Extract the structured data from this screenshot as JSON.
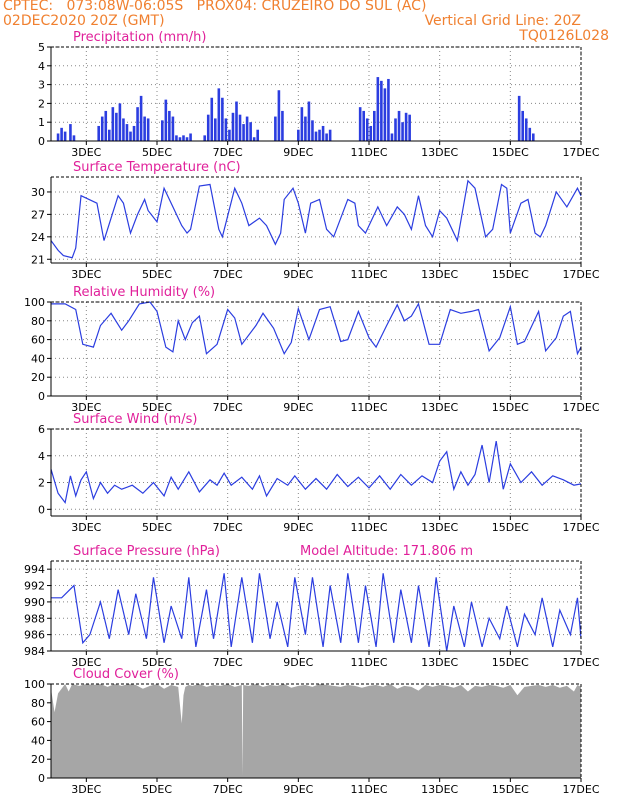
{
  "header": {
    "line1_left": "CPTEC:   073:08W-06:05S   PROX04: CRUZEIRO DO SUL (AC)",
    "line2_left": "02DEC2020 20Z (GMT)",
    "line2_right": "Vertical Grid Line: 20Z",
    "line3_right": "TQ0126L028"
  },
  "colors": {
    "header": "#f08030",
    "title": "#e0209a",
    "line": "#2b3de0",
    "bar": "#2b3de0",
    "cloud": "#a6a6a6",
    "axis": "#000000"
  },
  "x_axis": {
    "tick_labels": [
      "3DEC",
      "5DEC",
      "7DEC",
      "9DEC",
      "11DEC",
      "13DEC",
      "15DEC",
      "17DEC"
    ],
    "tick_values": [
      1,
      3,
      5,
      7,
      9,
      11,
      13,
      15
    ],
    "range_days": [
      0,
      15
    ]
  },
  "chart_data": [
    {
      "type": "bar",
      "title": "Precipitation (mm/h)",
      "ylim": [
        0,
        5
      ],
      "yticks": [
        "0",
        "1",
        "2",
        "3",
        "4",
        "5"
      ],
      "grid": true,
      "x": [
        0.2,
        0.3,
        0.4,
        0.55,
        0.65,
        1.35,
        1.45,
        1.55,
        1.65,
        1.75,
        1.85,
        1.95,
        2.05,
        2.15,
        2.25,
        2.35,
        2.45,
        2.55,
        2.65,
        2.75,
        3.15,
        3.25,
        3.35,
        3.45,
        3.55,
        3.65,
        3.75,
        3.85,
        3.95,
        4.35,
        4.45,
        4.55,
        4.65,
        4.75,
        4.85,
        4.95,
        5.05,
        5.15,
        5.25,
        5.35,
        5.45,
        5.55,
        5.65,
        5.75,
        5.85,
        6.35,
        6.45,
        6.55,
        7.0,
        7.1,
        7.2,
        7.3,
        7.4,
        7.5,
        7.6,
        7.7,
        7.8,
        7.9,
        8.75,
        8.85,
        8.95,
        9.05,
        9.15,
        9.25,
        9.35,
        9.45,
        9.55,
        9.65,
        9.75,
        9.85,
        9.95,
        10.05,
        10.15,
        13.25,
        13.35,
        13.45,
        13.55,
        13.65
      ],
      "values": [
        0.4,
        0.7,
        0.5,
        0.9,
        0.3,
        0.8,
        1.3,
        1.6,
        0.6,
        1.8,
        1.5,
        2.0,
        1.2,
        0.9,
        0.5,
        0.8,
        1.8,
        2.4,
        1.3,
        1.2,
        1.1,
        2.2,
        1.6,
        1.3,
        0.3,
        0.2,
        0.3,
        0.2,
        0.4,
        0.3,
        1.4,
        2.3,
        1.2,
        2.8,
        2.3,
        1.2,
        0.6,
        1.5,
        2.1,
        1.4,
        0.9,
        1.3,
        1.0,
        0.2,
        0.6,
        1.3,
        2.7,
        1.6,
        0.6,
        1.8,
        1.3,
        2.1,
        1.1,
        0.5,
        0.6,
        0.8,
        0.4,
        0.6,
        1.8,
        1.6,
        1.2,
        0.8,
        1.6,
        3.4,
        3.2,
        2.8,
        3.3,
        0.4,
        1.2,
        1.6,
        1.0,
        1.5,
        1.4,
        2.4,
        1.6,
        1.2,
        0.7,
        0.4
      ]
    },
    {
      "type": "line",
      "title": "Surface Temperature (nC)",
      "ylim": [
        20.5,
        32
      ],
      "yticks": [
        "21",
        "24",
        "27",
        "30"
      ],
      "grid": true,
      "x": [
        0.0,
        0.2,
        0.35,
        0.6,
        0.7,
        0.85,
        1.3,
        1.5,
        1.6,
        1.9,
        2.05,
        2.25,
        2.45,
        2.65,
        2.75,
        3.0,
        3.2,
        3.45,
        3.7,
        3.85,
        3.95,
        4.2,
        4.5,
        4.75,
        4.85,
        5.2,
        5.4,
        5.6,
        5.9,
        6.1,
        6.35,
        6.5,
        6.6,
        6.85,
        7.0,
        7.2,
        7.35,
        7.6,
        7.8,
        8.0,
        8.4,
        8.6,
        8.7,
        8.9,
        9.25,
        9.4,
        9.5,
        9.8,
        10.0,
        10.2,
        10.4,
        10.6,
        10.8,
        11.0,
        11.2,
        11.5,
        11.8,
        12.0,
        12.3,
        12.5,
        12.75,
        12.9,
        13.0,
        13.3,
        13.5,
        13.7,
        13.85,
        14.0,
        14.3,
        14.6,
        14.9,
        15.0
      ],
      "values": [
        23.5,
        22.2,
        21.5,
        21.2,
        22.5,
        29.5,
        28.5,
        23.5,
        25.0,
        29.5,
        28.5,
        24.5,
        27.0,
        29.0,
        27.5,
        26.0,
        30.5,
        28.0,
        25.5,
        24.5,
        25.0,
        30.8,
        31.0,
        25.0,
        24.0,
        30.5,
        28.5,
        25.5,
        26.5,
        25.5,
        23.0,
        24.5,
        29.0,
        30.5,
        28.5,
        24.5,
        28.5,
        29.0,
        25.0,
        24.0,
        29.0,
        28.5,
        25.5,
        24.5,
        28.0,
        26.5,
        25.5,
        28.0,
        27.0,
        25.0,
        29.5,
        25.5,
        24.0,
        27.5,
        26.5,
        23.5,
        31.5,
        30.5,
        24.0,
        25.0,
        31.0,
        30.5,
        24.5,
        28.5,
        29.0,
        24.5,
        24.0,
        25.5,
        30.0,
        28.0,
        30.5,
        29.5
      ]
    },
    {
      "type": "line",
      "title": "Relative Humidity (%)",
      "ylim": [
        0,
        100
      ],
      "yticks": [
        "0",
        "20",
        "40",
        "60",
        "80",
        "100"
      ],
      "grid": true,
      "x": [
        0.0,
        0.4,
        0.7,
        0.9,
        1.2,
        1.4,
        1.7,
        2.0,
        2.2,
        2.5,
        2.8,
        3.0,
        3.25,
        3.45,
        3.6,
        3.8,
        4.0,
        4.2,
        4.4,
        4.7,
        5.0,
        5.2,
        5.4,
        5.8,
        6.0,
        6.3,
        6.6,
        6.8,
        7.0,
        7.3,
        7.6,
        7.9,
        8.2,
        8.4,
        8.7,
        9.0,
        9.2,
        9.5,
        9.8,
        10.0,
        10.2,
        10.4,
        10.7,
        11.0,
        11.3,
        11.6,
        11.9,
        12.1,
        12.4,
        12.7,
        13.0,
        13.2,
        13.4,
        13.8,
        14.0,
        14.3,
        14.5,
        14.7,
        14.9,
        15.0
      ],
      "values": [
        98,
        98,
        92,
        55,
        52,
        75,
        88,
        70,
        80,
        98,
        100,
        90,
        52,
        47,
        80,
        60,
        78,
        85,
        45,
        55,
        92,
        83,
        55,
        75,
        88,
        72,
        45,
        57,
        93,
        60,
        92,
        95,
        58,
        60,
        90,
        62,
        52,
        75,
        97,
        80,
        85,
        98,
        55,
        55,
        92,
        88,
        90,
        92,
        48,
        62,
        95,
        55,
        58,
        90,
        48,
        62,
        85,
        90,
        45,
        52
      ]
    },
    {
      "type": "line",
      "title": "Surface Wind (m/s)",
      "ylim": [
        -0.5,
        6
      ],
      "yticks": [
        "0",
        "2",
        "4",
        "6"
      ],
      "grid": true,
      "x": [
        0.0,
        0.2,
        0.4,
        0.55,
        0.7,
        0.85,
        1.0,
        1.2,
        1.4,
        1.6,
        1.8,
        2.0,
        2.3,
        2.6,
        2.9,
        3.2,
        3.4,
        3.6,
        3.9,
        4.2,
        4.5,
        4.7,
        4.9,
        5.1,
        5.4,
        5.7,
        5.9,
        6.1,
        6.4,
        6.7,
        6.9,
        7.2,
        7.5,
        7.8,
        8.1,
        8.4,
        8.7,
        9.0,
        9.3,
        9.6,
        9.9,
        10.2,
        10.5,
        10.8,
        11.0,
        11.2,
        11.4,
        11.6,
        11.8,
        12.0,
        12.2,
        12.4,
        12.6,
        12.8,
        13.0,
        13.3,
        13.6,
        13.9,
        14.2,
        14.5,
        14.8,
        15.0
      ],
      "values": [
        3.0,
        1.2,
        0.5,
        2.5,
        1.0,
        2.2,
        2.8,
        0.8,
        2.0,
        1.2,
        1.8,
        1.5,
        1.8,
        1.2,
        2.0,
        1.0,
        2.4,
        1.5,
        2.8,
        1.3,
        2.2,
        1.8,
        2.7,
        1.8,
        2.4,
        1.5,
        2.5,
        1.0,
        2.3,
        1.8,
        2.5,
        1.5,
        2.3,
        1.5,
        2.6,
        1.7,
        2.4,
        1.6,
        2.5,
        1.5,
        2.6,
        1.8,
        2.5,
        2.0,
        3.6,
        4.3,
        1.5,
        2.8,
        1.8,
        2.6,
        4.8,
        2.0,
        5.1,
        1.5,
        3.4,
        2.0,
        2.8,
        1.8,
        2.5,
        2.2,
        1.8,
        1.9
      ]
    },
    {
      "type": "line",
      "title": "Surface Pressure (hPa)",
      "subtitle": "Model Altitude: 171.806 m",
      "ylim": [
        984,
        995
      ],
      "yticks": [
        "984",
        "986",
        "988",
        "990",
        "992",
        "994"
      ],
      "grid": true,
      "x": [
        0.0,
        0.3,
        0.65,
        0.9,
        1.1,
        1.4,
        1.65,
        1.9,
        2.2,
        2.4,
        2.7,
        2.9,
        3.2,
        3.4,
        3.7,
        3.9,
        4.1,
        4.4,
        4.6,
        4.9,
        5.1,
        5.4,
        5.7,
        5.9,
        6.2,
        6.4,
        6.7,
        6.9,
        7.2,
        7.4,
        7.7,
        7.9,
        8.2,
        8.4,
        8.7,
        8.9,
        9.2,
        9.4,
        9.7,
        9.9,
        10.2,
        10.4,
        10.7,
        10.9,
        11.2,
        11.4,
        11.7,
        11.9,
        12.2,
        12.4,
        12.7,
        12.9,
        13.2,
        13.4,
        13.7,
        13.9,
        14.2,
        14.4,
        14.7,
        14.9,
        15.0
      ],
      "values": [
        990.5,
        990.5,
        992.0,
        985.0,
        986.0,
        990.0,
        985.5,
        991.5,
        986.0,
        991.0,
        985.5,
        993.0,
        985.0,
        989.5,
        985.5,
        993.0,
        984.5,
        991.5,
        985.5,
        993.5,
        984.5,
        993.0,
        985.0,
        993.5,
        985.5,
        990.0,
        984.5,
        993.0,
        986.0,
        993.0,
        984.5,
        992.0,
        985.0,
        993.5,
        985.0,
        992.0,
        984.5,
        993.5,
        985.0,
        991.5,
        985.0,
        992.0,
        984.5,
        993.0,
        984.0,
        989.5,
        984.5,
        990.0,
        984.5,
        988.0,
        985.5,
        989.5,
        984.5,
        988.5,
        986.0,
        990.5,
        984.5,
        989.0,
        986.0,
        990.5,
        985.5
      ]
    },
    {
      "type": "area",
      "title": "Cloud Cover (%)",
      "ylim": [
        0,
        100
      ],
      "yticks": [
        "0",
        "20",
        "40",
        "60",
        "80",
        "100"
      ],
      "grid": false,
      "x": [
        0.0,
        0.1,
        0.2,
        0.4,
        0.5,
        0.6,
        0.8,
        1.0,
        1.2,
        1.4,
        1.6,
        1.8,
        2.0,
        2.2,
        2.4,
        2.6,
        2.8,
        3.0,
        3.2,
        3.4,
        3.6,
        3.7,
        3.75,
        3.8,
        3.9,
        4.0,
        4.2,
        4.4,
        4.6,
        4.8,
        5.0,
        5.2,
        5.4,
        5.42,
        5.44,
        5.6,
        5.8,
        6.0,
        6.2,
        6.4,
        6.6,
        6.8,
        7.0,
        7.2,
        7.4,
        7.6,
        7.8,
        8.0,
        8.2,
        8.4,
        8.6,
        8.8,
        9.0,
        9.2,
        9.4,
        9.6,
        9.8,
        10.0,
        10.2,
        10.4,
        10.6,
        10.8,
        11.0,
        11.2,
        11.4,
        11.6,
        11.8,
        12.0,
        12.2,
        12.4,
        12.6,
        12.8,
        13.0,
        13.2,
        13.4,
        13.6,
        13.8,
        14.0,
        14.2,
        14.4,
        14.6,
        14.8,
        14.9,
        15.0
      ],
      "values": [
        95,
        70,
        90,
        100,
        92,
        100,
        98,
        100,
        99,
        100,
        97,
        100,
        98,
        100,
        99,
        95,
        98,
        100,
        95,
        99,
        97,
        58,
        88,
        97,
        99,
        98,
        100,
        97,
        99,
        98,
        100,
        97,
        99,
        2,
        99,
        98,
        100,
        97,
        99,
        98,
        100,
        96,
        98,
        99,
        97,
        100,
        99,
        98,
        97,
        99,
        98,
        96,
        98,
        99,
        97,
        100,
        95,
        98,
        97,
        93,
        99,
        97,
        99,
        98,
        96,
        99,
        92,
        98,
        97,
        99,
        98,
        96,
        99,
        88,
        97,
        98,
        99,
        97,
        99,
        96,
        98,
        92,
        99,
        97
      ]
    }
  ]
}
